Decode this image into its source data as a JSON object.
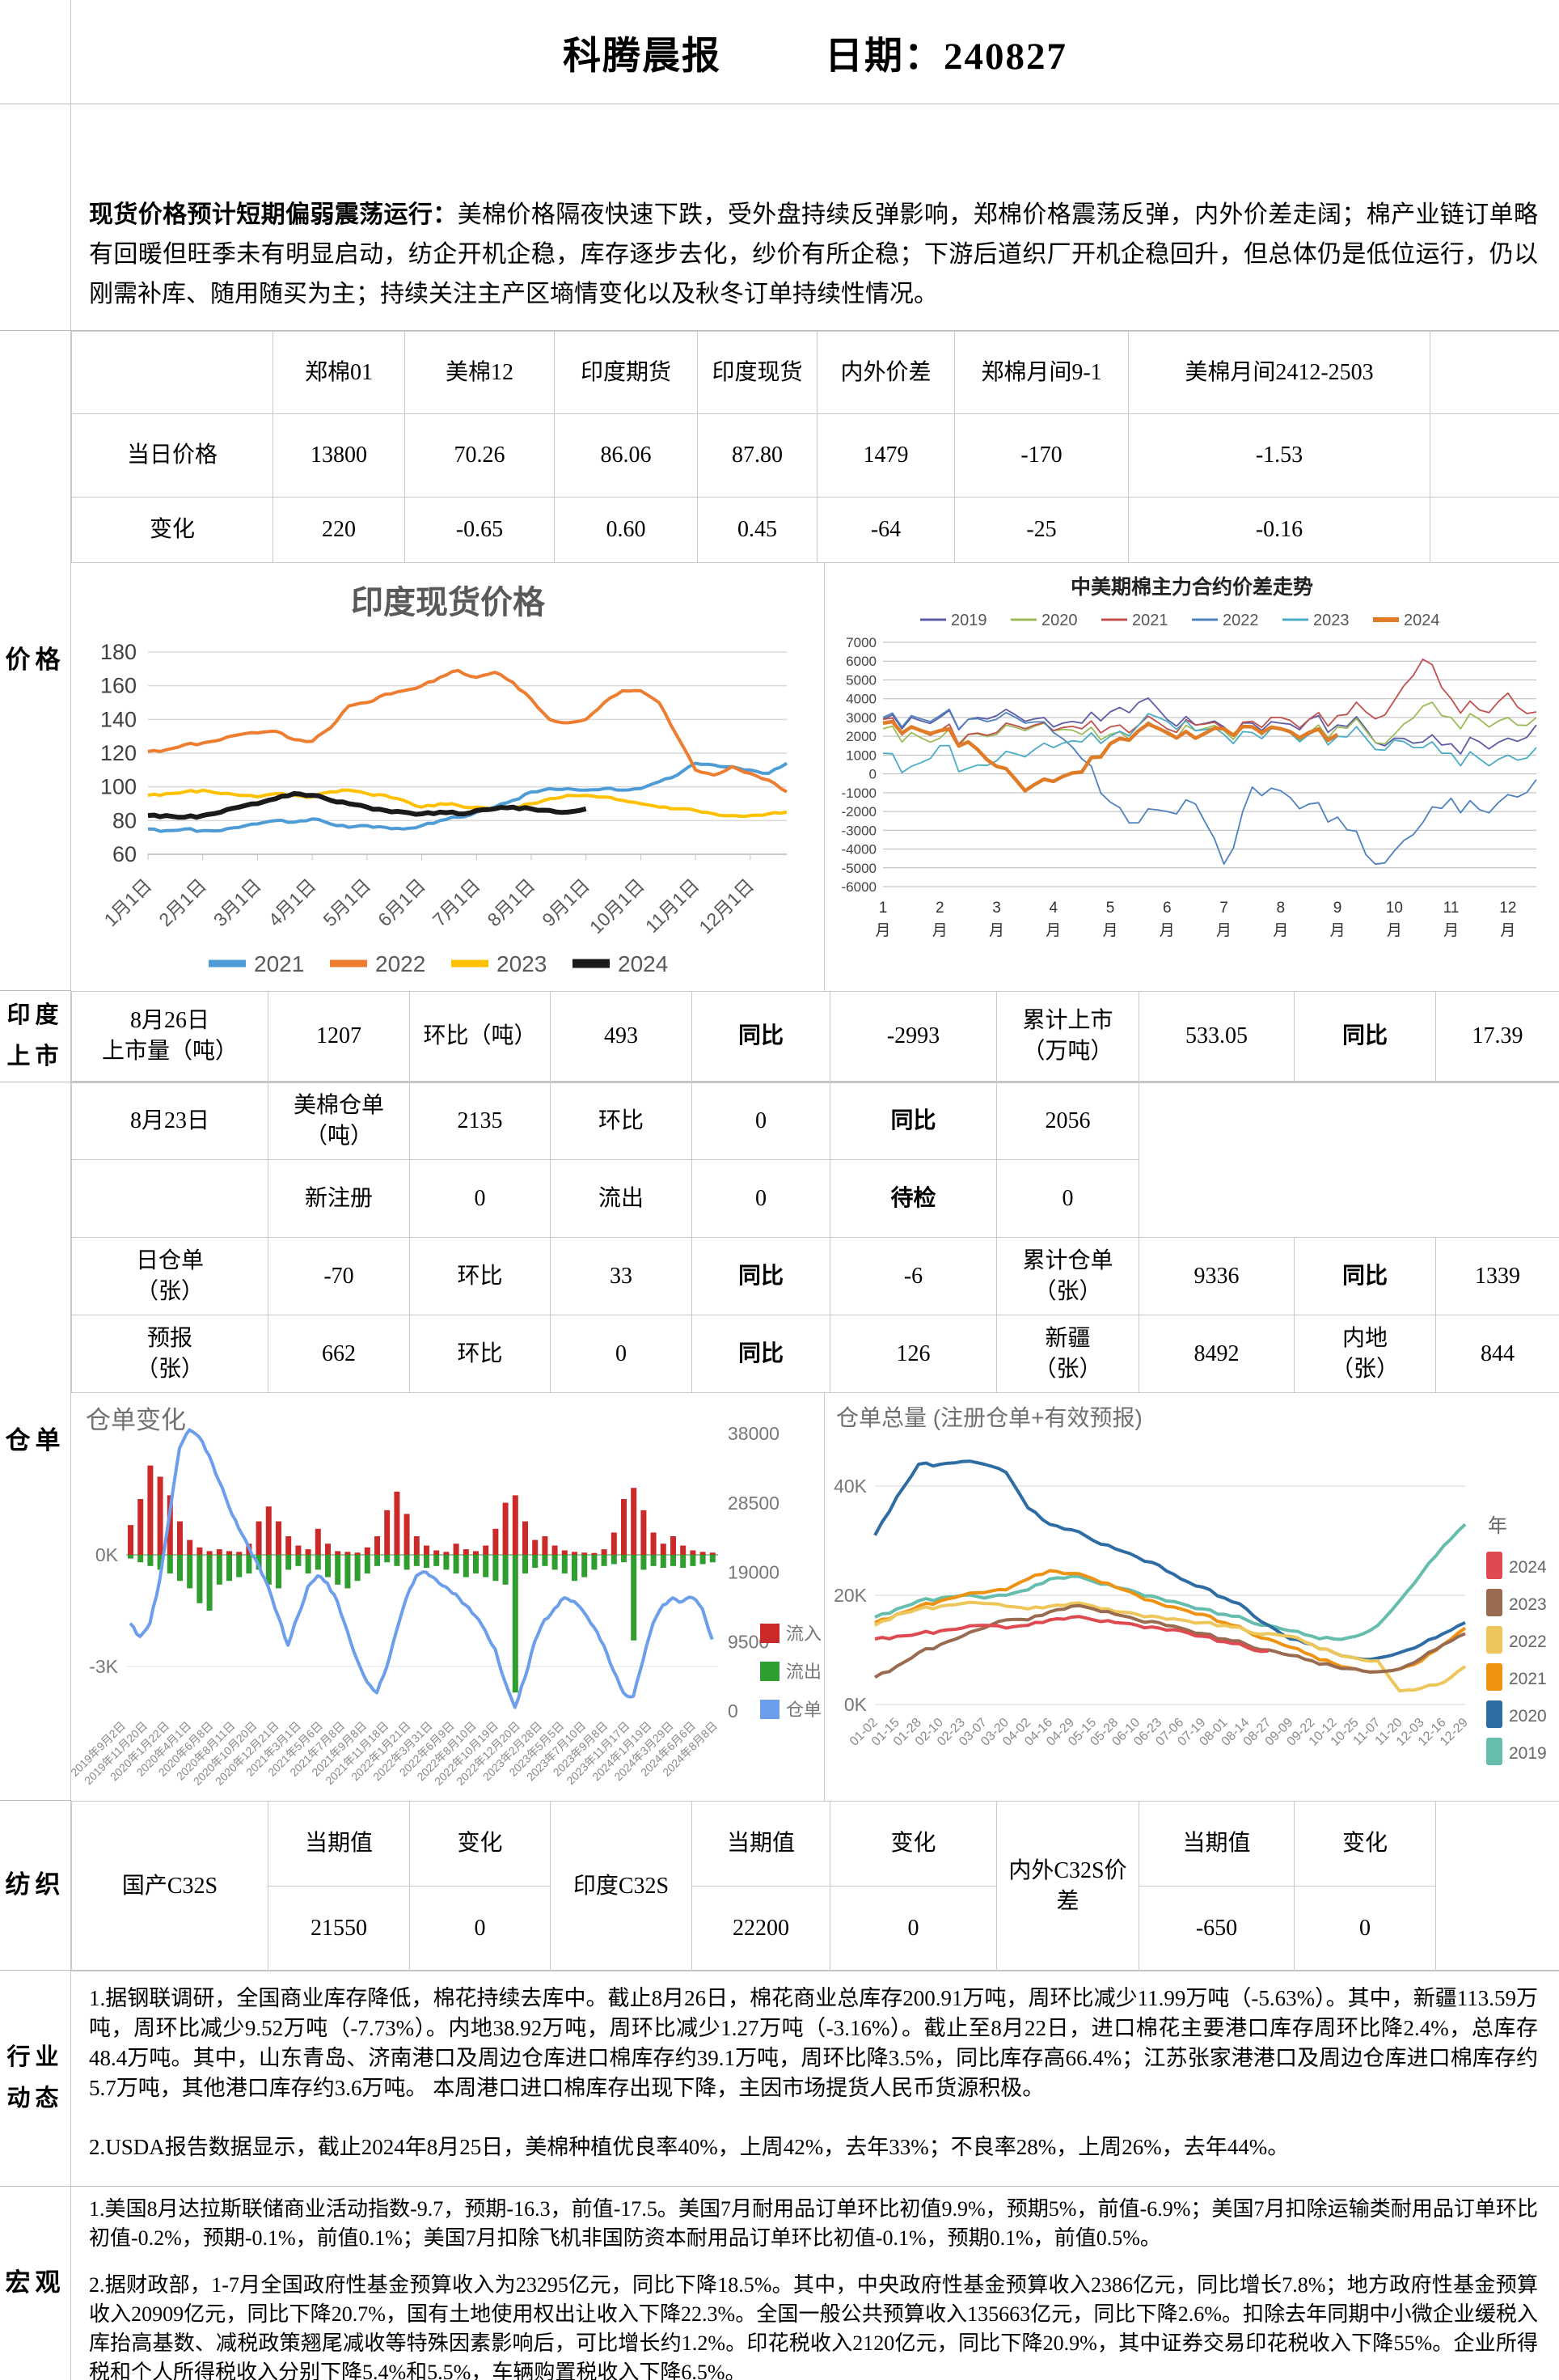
{
  "header": {
    "title": "科腾晨报",
    "date": "日期：240827"
  },
  "summary": {
    "lead": "现货价格预计短期偏弱震荡运行：",
    "body": "美棉价格隔夜快速下跌，受外盘持续反弹影响，郑棉价格震荡反弹，内外价差走阔；棉产业链订单略有回暖但旺季未有明显启动，纺企开机企稳，库存逐步去化，纱价有所企稳；下游后道织厂开机企稳回升，但总体仍是低位运行，仍以刚需补库、随用随买为主；持续关注主产区墒情变化以及秋冬订单持续性情况。"
  },
  "side_labels": {
    "price": "价格",
    "india": "印度\n上市",
    "warehouse": "仓单",
    "textile": "纺织",
    "industry": "行业\n动态",
    "macro": "宏观"
  },
  "price_table": {
    "columns": [
      "郑棉01",
      "美棉12",
      "印度期货",
      "印度现货",
      "内外价差",
      "郑棉月间9-1",
      "美棉月间2412-2503"
    ],
    "rows": [
      {
        "label": "当日价格",
        "values": [
          "13800",
          "70.26",
          "86.06",
          "87.80",
          "1479",
          "-170",
          "-1.53"
        ]
      },
      {
        "label": "变化",
        "values": [
          "220",
          "-0.65",
          "0.60",
          "0.45",
          "-64",
          "-25",
          "-0.16"
        ]
      }
    ]
  },
  "india_listing": {
    "cells": [
      {
        "t": "8月26日\n上市量（吨）"
      },
      {
        "t": "1207"
      },
      {
        "t": "环比（吨）"
      },
      {
        "t": "493"
      },
      {
        "t": "同比",
        "b": 1
      },
      {
        "t": "-2993"
      },
      {
        "t": "累计上市\n（万吨）"
      },
      {
        "t": "533.05"
      },
      {
        "t": "同比",
        "b": 1
      },
      {
        "t": "17.39"
      }
    ]
  },
  "warehouse_rows": [
    [
      {
        "t": "8月23日"
      },
      {
        "t": "美棉仓单\n（吨）"
      },
      {
        "t": "2135"
      },
      {
        "t": "环比"
      },
      {
        "t": "0"
      },
      {
        "t": "同比",
        "b": 1
      },
      {
        "t": "2056"
      },
      {
        "t": "",
        "cs": 3,
        "rs": 2
      }
    ],
    [
      {
        "t": ""
      },
      {
        "t": "新注册"
      },
      {
        "t": "0"
      },
      {
        "t": "流出"
      },
      {
        "t": "0"
      },
      {
        "t": "待检",
        "b": 1
      },
      {
        "t": "0"
      }
    ],
    [
      {
        "t": "日仓单\n（张）"
      },
      {
        "t": "-70"
      },
      {
        "t": "环比"
      },
      {
        "t": "33"
      },
      {
        "t": "同比",
        "b": 1
      },
      {
        "t": "-6"
      },
      {
        "t": "累计仓单\n（张）"
      },
      {
        "t": "9336"
      },
      {
        "t": "同比",
        "b": 1
      },
      {
        "t": "1339"
      }
    ],
    [
      {
        "t": "预报\n（张）"
      },
      {
        "t": "662"
      },
      {
        "t": "环比"
      },
      {
        "t": "0"
      },
      {
        "t": "同比",
        "b": 1
      },
      {
        "t": "126"
      },
      {
        "t": "新疆\n（张）"
      },
      {
        "t": "8492"
      },
      {
        "t": "内地\n（张）"
      },
      {
        "t": "844"
      }
    ]
  ],
  "textile": {
    "current_label": "当期值",
    "change_label": "变化",
    "groups": [
      {
        "name": "国产C32S",
        "current": "21550",
        "change": "0"
      },
      {
        "name": "印度C32S",
        "current": "22200",
        "change": "0"
      },
      {
        "name": "内外C32S价差",
        "current": "-650",
        "change": "0"
      }
    ]
  },
  "industry": {
    "items": [
      "1.据钢联调研，全国商业库存降低，棉花持续去库中。截止8月26日，棉花商业总库存200.91万吨，周环比减少11.99万吨（-5.63%）。其中，新疆113.59万吨，周环比减少9.52万吨（-7.73%）。内地38.92万吨，周环比减少1.27万吨（-3.16%）。截止至8月22日，进口棉花主要港口库存周环比降2.4%，总库存48.4万吨。其中，山东青岛、济南港口及周边仓库进口棉库存约39.1万吨，周环比降3.5%，同比库存高66.4%；江苏张家港港口及周边仓库进口棉库存约5.7万吨，其他港口库存约3.6万吨。 本周港口进口棉库存出现下降，主因市场提货人民币货源积极。",
      "2.USDA报告数据显示，截止2024年8月25日，美棉种植优良率40%，上周42%，去年33%；不良率28%，上周26%，去年44%。"
    ]
  },
  "macro": {
    "items": [
      "1.美国8月达拉斯联储商业活动指数-9.7，预期-16.3，前值-17.5。美国7月耐用品订单环比初值9.9%，预期5%，前值-6.9%；美国7月扣除运输类耐用品订单环比初值-0.2%，预期-0.1%，前值0.1%；美国7月扣除飞机非国防资本耐用品订单环比初值-0.1%，预期0.1%，前值0.5%。",
      "2.据财政部，1-7月全国政府性基金预算收入为23295亿元，同比下降18.5%。其中，中央政府性基金预算收入2386亿元，同比增长7.8%；地方政府性基金预算收入20909亿元，同比下降20.7%，国有土地使用权出让收入下降22.3%。全国一般公共预算收入135663亿元，同比下降2.6%。扣除去年同期中小微企业缓税入库抬高基数、减税政策翘尾减收等特殊因素影响后，可比增长约1.2%。印花税收入2120亿元，同比下降20.9%，其中证券交易印花税收入下降55%。企业所得税和个人所得税收入分别下降5.4%和5.5%，车辆购置税收入下降6.5%。"
    ]
  },
  "chart_data": [
    {
      "type": "line",
      "title": "印度现货价格",
      "xlabel": "",
      "ylabel": "",
      "x_labels": [
        "1月1日",
        "2月1日",
        "3月1日",
        "4月1日",
        "5月1日",
        "6月1日",
        "7月1日",
        "8月1日",
        "9月1日",
        "10月1日",
        "11月1日",
        "12月1日"
      ],
      "ylim": [
        60,
        180
      ],
      "yticks": [
        180,
        160,
        140,
        120,
        100,
        80,
        60
      ],
      "legend_position": "bottom",
      "series": [
        {
          "name": "2021",
          "color": "#4E9CD5",
          "values": [
            75,
            74,
            75,
            74,
            74,
            76,
            78,
            80,
            79,
            81,
            78,
            76,
            77,
            76,
            75,
            77,
            80,
            82,
            85,
            88,
            92,
            97,
            99,
            99,
            98,
            99,
            98,
            99,
            103,
            107,
            114,
            113,
            112,
            110,
            108,
            114
          ]
        },
        {
          "name": "2022",
          "color": "#ED7D31",
          "values": [
            121,
            122,
            125,
            126,
            128,
            131,
            132,
            133,
            128,
            127,
            135,
            148,
            150,
            155,
            157,
            160,
            165,
            169,
            165,
            168,
            162,
            152,
            140,
            138,
            140,
            150,
            157,
            157,
            150,
            130,
            110,
            107,
            112,
            108,
            104,
            97
          ]
        },
        {
          "name": "2023",
          "color": "#FFC000",
          "values": [
            95,
            96,
            97,
            98,
            96,
            95,
            94,
            96,
            95,
            94,
            97,
            98,
            96,
            95,
            92,
            88,
            90,
            89,
            88,
            87,
            88,
            90,
            93,
            95,
            95,
            94,
            92,
            90,
            88,
            87,
            86,
            84,
            83,
            83,
            84,
            85
          ]
        },
        {
          "name": "2024",
          "color": "#1a1a1a",
          "thick": 1,
          "values": [
            83,
            83,
            82,
            83,
            85,
            88,
            90,
            93,
            96,
            95,
            92,
            90,
            88,
            86,
            85,
            84,
            85,
            84,
            86,
            87,
            88,
            87,
            86,
            85,
            87
          ]
        }
      ]
    },
    {
      "type": "line",
      "title": "中美期棉主力合约价差走势",
      "x_labels": [
        "1月",
        "2月",
        "3月",
        "4月",
        "5月",
        "6月",
        "7月",
        "8月",
        "9月",
        "10月",
        "11月",
        "12月"
      ],
      "ylim": [
        -6000,
        7000
      ],
      "yticks": [
        7000,
        6000,
        5000,
        4000,
        3000,
        2000,
        1000,
        0,
        -1000,
        -2000,
        -3000,
        -4000,
        -5000,
        -6000
      ],
      "legend_position": "top",
      "series": [
        {
          "name": "2019",
          "color": "#5C5CA6",
          "values": [
            2900,
            3000,
            3000,
            2900,
            3100,
            2800,
            2500,
            2700,
            3300,
            3800,
            2900,
            2600,
            2500,
            2700,
            2700,
            2900,
            2600,
            2400,
            1900,
            1700,
            1600,
            1700,
            1900,
            2600
          ]
        },
        {
          "name": "2020",
          "color": "#9BBB59",
          "values": [
            2400,
            2200,
            1900,
            2100,
            2100,
            2300,
            2300,
            2100,
            2100,
            2300,
            2100,
            2300,
            2300,
            2500,
            2400,
            2200,
            2500,
            2300,
            2100,
            3600,
            3000,
            2900,
            3000,
            3000
          ]
        },
        {
          "name": "2021",
          "color": "#C0504D",
          "values": [
            2900,
            2500,
            2300,
            2100,
            2200,
            2400,
            2300,
            2400,
            2500,
            2600,
            2400,
            2600,
            2400,
            2800,
            3000,
            2900,
            3100,
            3300,
            3900,
            6100,
            4000,
            3400,
            4300,
            3300
          ]
        },
        {
          "name": "2022",
          "color": "#4F81BD",
          "values": [
            3000,
            3100,
            3100,
            2900,
            2900,
            2700,
            2200,
            800,
            -1500,
            -2600,
            -2000,
            -1600,
            -4800,
            -700,
            -900,
            -1600,
            -2300,
            -4300,
            -4100,
            -2600,
            -1300,
            -1900,
            -1100,
            -300
          ]
        },
        {
          "name": "2023",
          "color": "#4BACC6",
          "values": [
            1100,
            400,
            1500,
            300,
            700,
            900,
            1400,
            1700,
            2000,
            2600,
            2800,
            2300,
            2100,
            2200,
            2400,
            2100,
            2000,
            1900,
            1800,
            1400,
            1100,
            800,
            1000,
            1400
          ]
        },
        {
          "name": "2024",
          "color": "#E07B27",
          "thick": 1,
          "values": [
            2700,
            2500,
            2300,
            1700,
            400,
            -900,
            -400,
            100,
            1600,
            2300,
            2200,
            1900,
            2400,
            2500,
            2400,
            2200,
            2100
          ]
        }
      ]
    },
    {
      "type": "combo-bar-line",
      "title": "仓单变化",
      "left_ticks": [
        "0K",
        "-3K"
      ],
      "right_ticks": [
        38000,
        28500,
        19000,
        9500,
        0
      ],
      "legend": [
        {
          "name": "流入",
          "color": "#CC2A2A"
        },
        {
          "name": "流出",
          "color": "#2F9E2F"
        },
        {
          "name": "仓单",
          "color": "#6D9EEB"
        }
      ],
      "x_labels": [
        "2019年9月2日",
        "2019年11月20日",
        "2020年1月22日",
        "2020年4月1日",
        "2020年6月8日",
        "2020年8月11日",
        "2020年10月20日",
        "2020年12月21日",
        "2021年3月1日",
        "2021年5月6日",
        "2021年7月8日",
        "2021年9月8日",
        "2021年11月18日",
        "2022年1月21日",
        "2022年3月31日",
        "2022年6月9日",
        "2022年8月10日",
        "2022年10月19日",
        "2022年12月20日",
        "2023年2月28日",
        "2023年5月5日",
        "2023年7月10日",
        "2023年9月8日",
        "2023年11月17日",
        "2024年1月19日",
        "2024年3月29日",
        "2024年6月6日",
        "2024年8月8日"
      ],
      "inflow": [
        800,
        1500,
        2400,
        2100,
        1600,
        900,
        400,
        200,
        100,
        150,
        100,
        80,
        300,
        900,
        1300,
        900,
        500,
        250,
        150,
        700,
        300,
        100,
        80,
        60,
        200,
        500,
        1200,
        1700,
        1100,
        500,
        250,
        120,
        80,
        300,
        150,
        100,
        250,
        700,
        1400,
        1600,
        900,
        400,
        500,
        250,
        120,
        80,
        60,
        50,
        150,
        600,
        1500,
        1800,
        1200,
        600,
        300,
        500,
        250,
        120,
        80,
        60
      ],
      "outflow": [
        -100,
        -200,
        -300,
        -400,
        -500,
        -700,
        -900,
        -1300,
        -1500,
        -800,
        -700,
        -600,
        -500,
        -400,
        -800,
        -900,
        -400,
        -300,
        -500,
        -400,
        -600,
        -800,
        -900,
        -700,
        -500,
        -300,
        -200,
        -300,
        -400,
        -300,
        -350,
        -300,
        -400,
        -500,
        -600,
        -500,
        -600,
        -700,
        -800,
        -3700,
        -500,
        -350,
        -300,
        -400,
        -500,
        -700,
        -600,
        -400,
        -300,
        -250,
        -200,
        -2300,
        -400,
        -300,
        -350,
        -300,
        -350,
        -300,
        -250,
        -200
      ],
      "line": [
        12000,
        10200,
        12000,
        18000,
        27000,
        36000,
        38500,
        37500,
        35000,
        31500,
        28000,
        25000,
        22500,
        20000,
        17000,
        13000,
        9000,
        13000,
        17000,
        18500,
        17500,
        15000,
        11000,
        7000,
        4000,
        2500,
        6000,
        11000,
        15500,
        18500,
        19000,
        18000,
        17000,
        16000,
        14500,
        13000,
        11000,
        8500,
        4000,
        500,
        4500,
        9500,
        12500,
        14000,
        15500,
        15000,
        13500,
        11500,
        9000,
        5500,
        2500,
        2000,
        7000,
        12000,
        14500,
        15500,
        15000,
        15500,
        14000,
        9800
      ]
    },
    {
      "type": "line",
      "title": "仓单总量 (注册仓单+有效预报)",
      "legend_title": "年",
      "yticks_labels": [
        "40K",
        "20K",
        "0K"
      ],
      "ylim_k": [
        0,
        48
      ],
      "x_labels": [
        "01-02",
        "01-15",
        "01-28",
        "02-10",
        "02-23",
        "03-07",
        "03-20",
        "04-02",
        "04-16",
        "04-29",
        "05-15",
        "05-28",
        "06-10",
        "06-23",
        "07-06",
        "07-19",
        "08-01",
        "08-14",
        "08-27",
        "09-09",
        "09-22",
        "10-12",
        "10-25",
        "11-07",
        "11-20",
        "12-03",
        "12-16",
        "12-29"
      ],
      "series": [
        {
          "name": "2024",
          "color": "#DF4A50",
          "values_k": [
            12,
            12.5,
            13,
            13.5,
            14,
            14.5,
            14,
            14.5,
            15.5,
            16,
            15.5,
            15,
            14.5,
            14,
            13.5,
            12.5,
            11.5,
            10.5,
            9.8
          ]
        },
        {
          "name": "2023",
          "color": "#996B50",
          "values_k": [
            5,
            7,
            9.5,
            11,
            12.5,
            14,
            15.5,
            15.5,
            17,
            18,
            17.5,
            16.5,
            15.5,
            15,
            14,
            13,
            12,
            11,
            10,
            9,
            8,
            7,
            6.5,
            6,
            6.5,
            8.5,
            11,
            13
          ]
        },
        {
          "name": "2022",
          "color": "#EDC75B",
          "values_k": [
            14.5,
            16.5,
            17.5,
            18,
            18.5,
            18.5,
            18,
            17.5,
            18,
            18.5,
            18,
            17,
            16.5,
            16,
            15.5,
            15,
            14.5,
            13.5,
            13,
            12.5,
            11,
            9.5,
            8.5,
            8,
            2.5,
            3,
            4,
            7
          ]
        },
        {
          "name": "2021",
          "color": "#EF9212",
          "values_k": [
            15,
            16.5,
            18,
            19,
            20,
            20.5,
            21,
            23,
            24.5,
            24,
            23,
            21.5,
            20,
            18.5,
            17.5,
            16.5,
            15,
            13.5,
            12,
            10.5,
            9,
            7.5,
            6.5,
            6,
            6.5,
            8,
            11,
            14
          ]
        },
        {
          "name": "2020",
          "color": "#2E6DA4",
          "values_k": [
            31,
            38,
            44,
            44,
            44.5,
            44,
            42.5,
            36,
            33,
            32,
            30,
            28.5,
            27,
            25.5,
            23,
            21.5,
            19.5,
            17.5,
            14.5,
            12,
            11,
            9.5,
            8.5,
            8.5,
            9.5,
            11,
            13,
            15
          ]
        },
        {
          "name": "2019",
          "color": "#64BDAD",
          "values_k": [
            16,
            17.5,
            19,
            19.5,
            20,
            19.5,
            20,
            21,
            23,
            23.5,
            22.5,
            21.5,
            20.5,
            19.5,
            18.5,
            17.5,
            16.5,
            15.5,
            14.5,
            13.5,
            12.5,
            12,
            12.5,
            14.5,
            19,
            24,
            29,
            33
          ]
        }
      ]
    }
  ]
}
